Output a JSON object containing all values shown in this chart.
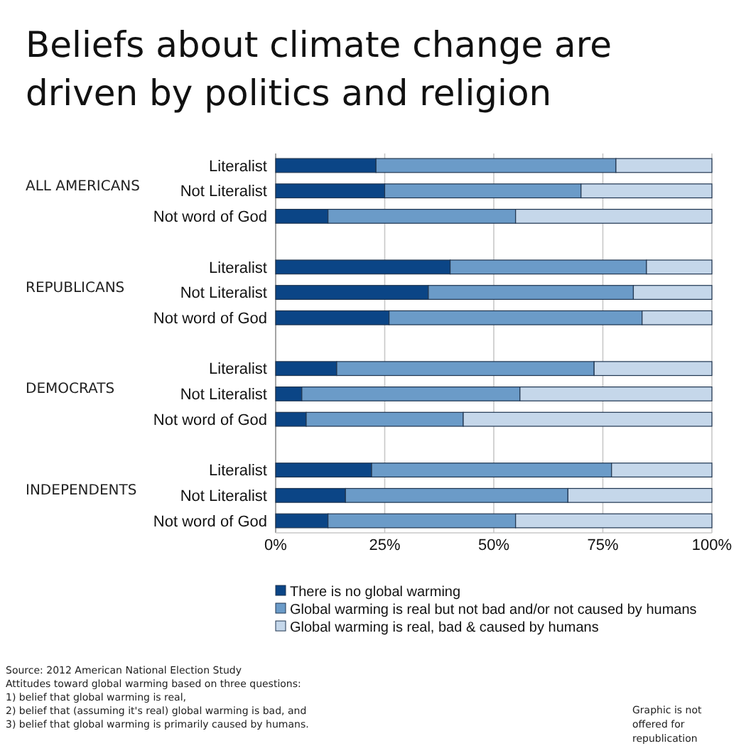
{
  "chart_data": {
    "type": "bar",
    "orientation": "horizontal",
    "stacked": true,
    "title": "Beliefs about climate change are driven by politics and religion",
    "categories": [
      "Literalist",
      "Not Literalist",
      "Not word of God",
      null,
      "Literalist",
      "Not Literalist",
      "Not word of God",
      null,
      "Literalist",
      "Not Literalist",
      "Not word of God",
      null,
      "Literalist",
      "Not Literalist",
      "Not word of God"
    ],
    "series": [
      {
        "name": "There is no global warming",
        "color": "#0b4586",
        "values": [
          23,
          25,
          12,
          null,
          40,
          35,
          26,
          null,
          14,
          6,
          7,
          null,
          22,
          16,
          12
        ]
      },
      {
        "name": "Global warming is real but not bad and/or not caused by humans",
        "color": "#6b9bc8",
        "values": [
          55,
          45,
          43,
          null,
          45,
          47,
          58,
          null,
          59,
          50,
          36,
          null,
          55,
          51,
          43
        ]
      },
      {
        "name": "Global warming is real, bad & caused by humans",
        "color": "#c5d7ea",
        "values": [
          22,
          30,
          45,
          null,
          15,
          18,
          16,
          null,
          27,
          44,
          57,
          null,
          23,
          33,
          45
        ]
      }
    ],
    "xlim": [
      0,
      100
    ],
    "xticks": [
      {
        "value": 0,
        "label": "0%"
      },
      {
        "value": 25,
        "label": "25%"
      },
      {
        "value": 50,
        "label": "50%"
      },
      {
        "value": 75,
        "label": "75%"
      },
      {
        "value": 100,
        "label": "100%"
      }
    ],
    "grid": "x",
    "legend": "bottom",
    "annotations": [
      "ALL AMERICANS",
      "REPUBLICANS",
      "DEMOCRATS",
      "INDEPENDENTS",
      "Source: 2012 American National Election Study",
      "Attitudes toward global warming based on three questions:",
      "1) belief that global warming is real,",
      "2) belief that (assuming it's real) global warming is bad, and",
      "3) belief that global warming is primarily caused by humans.",
      "Graphic is not offered for republication"
    ]
  }
}
